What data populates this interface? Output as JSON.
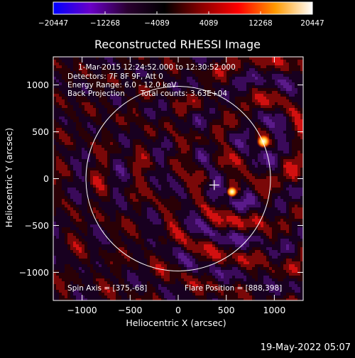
{
  "chart_data": {
    "type": "heatmap",
    "title": "Reconstructed RHESSI Image",
    "xlabel": "Heliocentric X (arcsec)",
    "ylabel": "Heliocentric Y (arcsec)",
    "xlim": [
      -1300,
      1300
    ],
    "ylim": [
      -1300,
      1300
    ],
    "x_ticks": [
      -1000,
      -500,
      0,
      500,
      1000
    ],
    "x_tick_labels": [
      "−1000",
      "−500",
      "0",
      "500",
      "1000"
    ],
    "y_ticks": [
      1000,
      500,
      0,
      -500,
      -1000
    ],
    "y_tick_labels": [
      "1000",
      "500",
      "0",
      "−500",
      "−1000"
    ],
    "colorbar": {
      "min": -20447,
      "max": 20447,
      "ticks": [
        -20447,
        -12268,
        -4089,
        4089,
        12268,
        20447
      ],
      "tick_labels": [
        "−20447",
        "−12268",
        "−4089",
        "4089",
        "12268",
        "20447"
      ],
      "colors": [
        "#0000ff",
        "#6a00c8",
        "#2a0030",
        "#000000",
        "#8a0000",
        "#ff0000",
        "#ff9a00",
        "#ffffff"
      ]
    },
    "annotations": [
      "1-Mar-2015 12:24:52.000 to 12:30:52.000",
      "Detectors: 7F 8F 9F, Att 0",
      "Energy Range: 6.0 - 12.0 keV",
      "Back Projection",
      "Total counts: 3.63E+04"
    ],
    "spin_axis_label": "Spin Axis = [375,-68]",
    "flare_position_label": "Flare Position = [888,398]",
    "spin_axis": [
      375,
      -68
    ],
    "flare_position": [
      888,
      398
    ],
    "secondary_source": [
      560,
      -140
    ],
    "solar_disk_radius": 960,
    "disk_center": [
      0,
      0
    ]
  },
  "timestamp": "19-May-2022 05:07"
}
